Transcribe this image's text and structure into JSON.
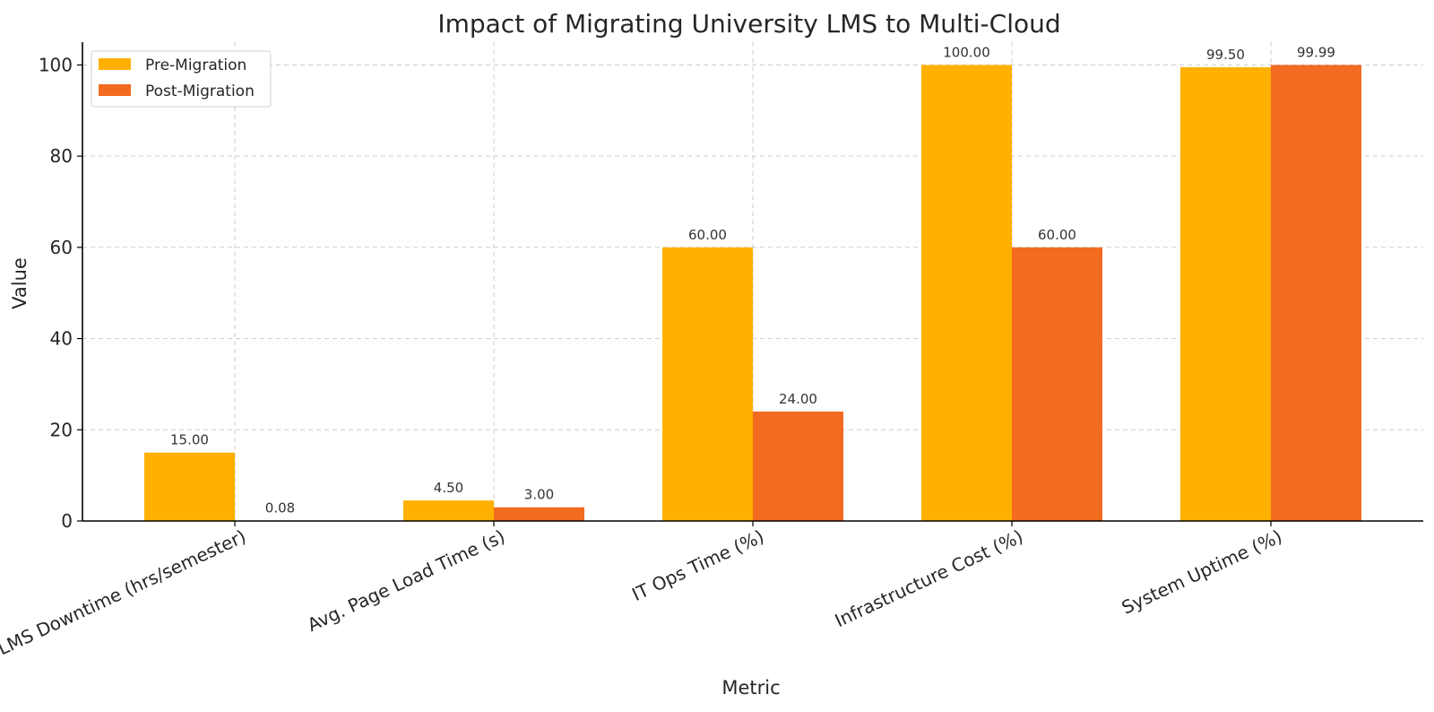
{
  "chart_data": {
    "type": "bar",
    "title": "Impact of Migrating University LMS to Multi-Cloud",
    "xlabel": "Metric",
    "ylabel": "Value",
    "categories": [
      "LMS Downtime (hrs/semester)",
      "Avg. Page Load Time (s)",
      "IT Ops Time (%)",
      "Infrastructure Cost (%)",
      "System Uptime (%)"
    ],
    "series": [
      {
        "name": "Pre-Migration",
        "color": "#FFB000",
        "values": [
          15.0,
          4.5,
          60.0,
          100.0,
          99.5
        ],
        "labels": [
          "15.00",
          "4.50",
          "60.00",
          "100.00",
          "99.50"
        ]
      },
      {
        "name": "Post-Migration",
        "color": "#F26B21",
        "values": [
          0.08,
          3.0,
          24.0,
          60.0,
          99.99
        ],
        "labels": [
          "0.08",
          "3.00",
          "24.00",
          "60.00",
          "99.99"
        ]
      }
    ],
    "ylim": [
      0,
      105
    ],
    "yticks": [
      0,
      20,
      40,
      60,
      80,
      100
    ],
    "ytick_labels": [
      "0",
      "20",
      "40",
      "60",
      "80",
      "100"
    ],
    "grid": true,
    "legend_position": "top-left"
  }
}
